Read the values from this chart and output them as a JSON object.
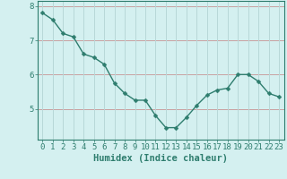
{
  "x": [
    0,
    1,
    2,
    3,
    4,
    5,
    6,
    7,
    8,
    9,
    10,
    11,
    12,
    13,
    14,
    15,
    16,
    17,
    18,
    19,
    20,
    21,
    22,
    23
  ],
  "y": [
    7.8,
    7.6,
    7.2,
    7.1,
    6.6,
    6.5,
    6.3,
    5.75,
    5.45,
    5.25,
    5.25,
    4.8,
    4.45,
    4.45,
    4.75,
    5.1,
    5.4,
    5.55,
    5.6,
    6.0,
    6.0,
    5.8,
    5.45,
    5.35
  ],
  "line_color": "#2e7d6e",
  "marker": "D",
  "marker_size": 2.5,
  "bg_color": "#d4f0f0",
  "grid_color": "#b8d8d8",
  "grid_color2": "#c8a8a8",
  "xlabel": "Humidex (Indice chaleur)",
  "ylim": [
    4.1,
    8.15
  ],
  "yticks": [
    5,
    6,
    7,
    8
  ],
  "xticks": [
    0,
    1,
    2,
    3,
    4,
    5,
    6,
    7,
    8,
    9,
    10,
    11,
    12,
    13,
    14,
    15,
    16,
    17,
    18,
    19,
    20,
    21,
    22,
    23
  ],
  "xlabel_fontsize": 7.5,
  "tick_fontsize": 6.5,
  "line_width": 1.0
}
